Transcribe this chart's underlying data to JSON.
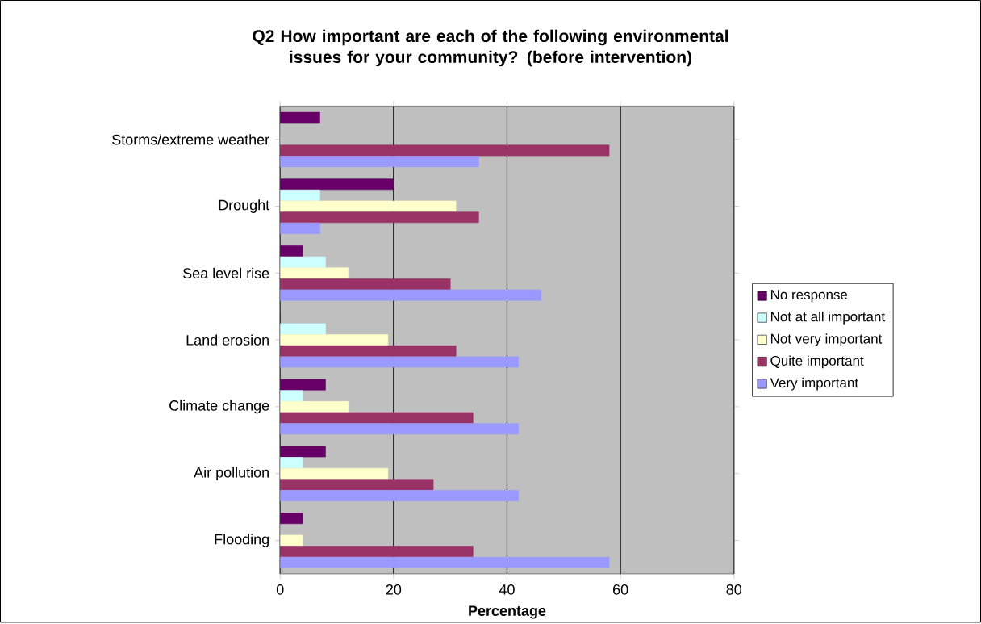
{
  "chart_data": {
    "type": "bar",
    "orientation": "horizontal",
    "title": "Q2 How important are each of the following environmental issues for your community?  (before intervention)",
    "xlabel": "Percentage",
    "categories": [
      "Storms/extreme weather",
      "Drought",
      "Sea level rise",
      "Land erosion",
      "Climate change",
      "Air pollution",
      "Flooding"
    ],
    "series": [
      {
        "name": "No response",
        "color": "#660066",
        "values": [
          7,
          20,
          4,
          0,
          8,
          8,
          4
        ]
      },
      {
        "name": "Not at all important",
        "color": "#ccffff",
        "values": [
          0,
          7,
          8,
          8,
          4,
          4,
          0
        ]
      },
      {
        "name": "Not very important",
        "color": "#ffffcc",
        "values": [
          0,
          31,
          12,
          19,
          12,
          19,
          4
        ]
      },
      {
        "name": "Quite important",
        "color": "#993366",
        "values": [
          58,
          35,
          30,
          31,
          34,
          27,
          34
        ]
      },
      {
        "name": "Very important",
        "color": "#9999ff",
        "values": [
          35,
          7,
          46,
          42,
          42,
          42,
          58
        ]
      }
    ],
    "xlim": [
      0,
      80
    ],
    "xticks": [
      0,
      20,
      40,
      60,
      80
    ],
    "grid": "x",
    "legend": "right"
  }
}
